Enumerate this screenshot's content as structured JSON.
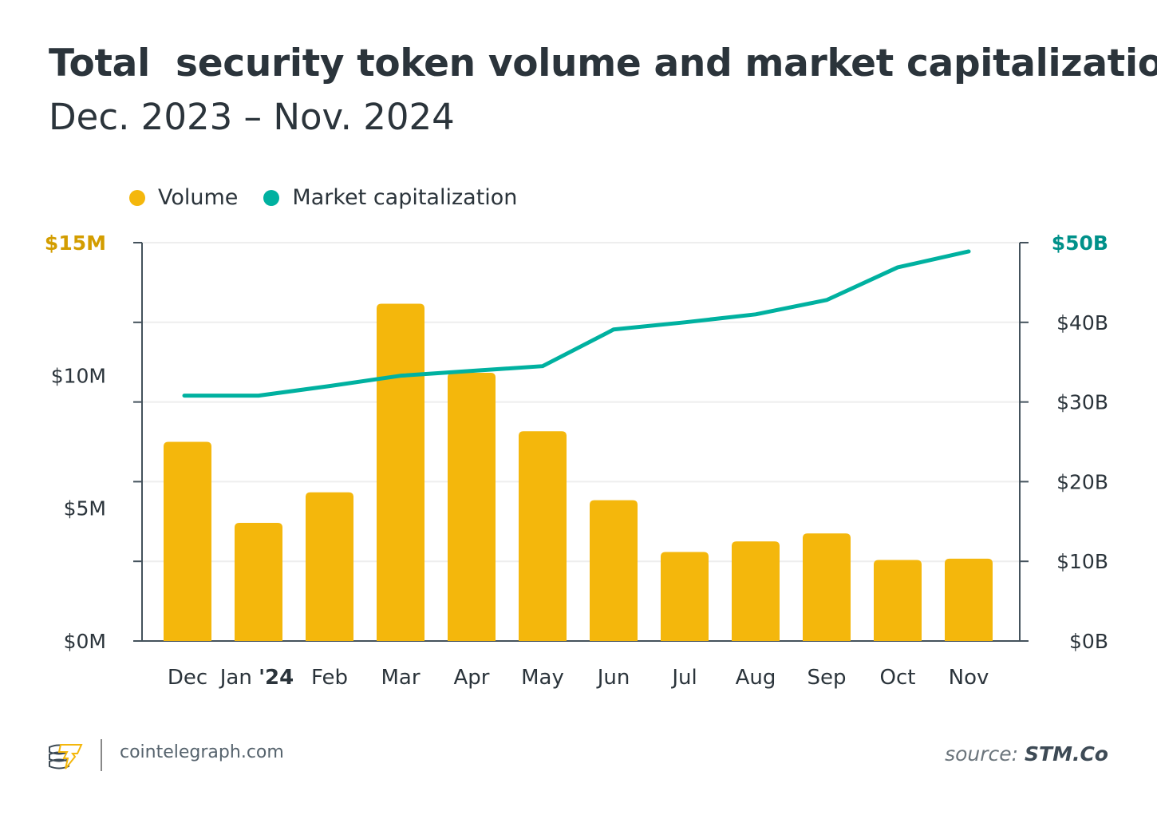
{
  "chart_data": {
    "type": "bar+line",
    "title": "Total  security token volume and market capitalization",
    "subtitle": "Dec. 2023 – Nov. 2024",
    "categories": [
      "Dec",
      "Jan '24",
      "Feb",
      "Mar",
      "Apr",
      "May",
      "Jun",
      "Jul",
      "Aug",
      "Sep",
      "Oct",
      "Nov"
    ],
    "series": [
      {
        "name": "Volume",
        "type": "bar",
        "axis": "left",
        "color": "#f4b70c",
        "values": [
          7.5,
          4.45,
          5.6,
          12.7,
          10.1,
          7.9,
          5.3,
          3.35,
          3.75,
          4.05,
          3.05,
          3.1
        ]
      },
      {
        "name": "Market capitalization",
        "type": "line",
        "axis": "right",
        "color": "#00b1a0",
        "values": [
          30.8,
          30.8,
          32.0,
          33.3,
          33.9,
          34.5,
          39.1,
          40.0,
          41.0,
          42.8,
          46.9,
          48.9
        ]
      }
    ],
    "left_axis": {
      "ticks": [
        "$15M",
        "$10M",
        "$5M",
        "$0M"
      ],
      "ylim": [
        0,
        15
      ],
      "unit": "$M",
      "top_label_color": "#d39d00"
    },
    "right_axis": {
      "ticks": [
        "$50B",
        "$40B",
        "$30B",
        "$20B",
        "$10B",
        "$0B"
      ],
      "ylim": [
        0,
        50
      ],
      "unit": "$B",
      "top_label_color": "#00918a"
    },
    "grid": true,
    "legend": "top-left"
  },
  "footer": {
    "site": "cointelegraph.com",
    "source_prefix": "source:",
    "source_name": "STM.Co"
  }
}
